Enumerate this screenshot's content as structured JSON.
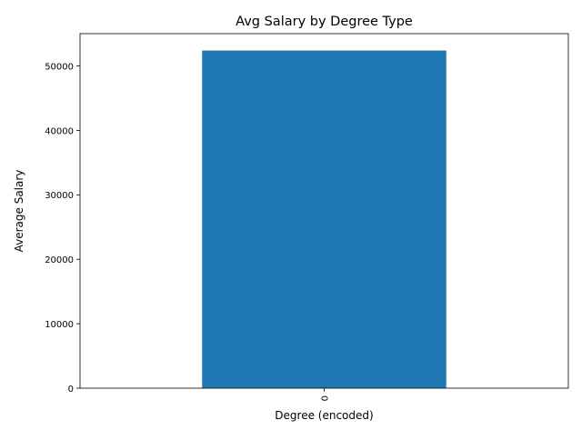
{
  "chart_data": {
    "type": "bar",
    "title": "Avg Salary by Degree Type",
    "xlabel": "Degree (encoded)",
    "ylabel": "Average Salary",
    "categories": [
      "0"
    ],
    "values": [
      52400
    ],
    "ylim": [
      0,
      55020
    ],
    "yticks": [
      "0",
      "10000",
      "20000",
      "30000",
      "40000",
      "50000"
    ],
    "grid": false,
    "legend": "none",
    "bar_color": "#1f77b4"
  }
}
